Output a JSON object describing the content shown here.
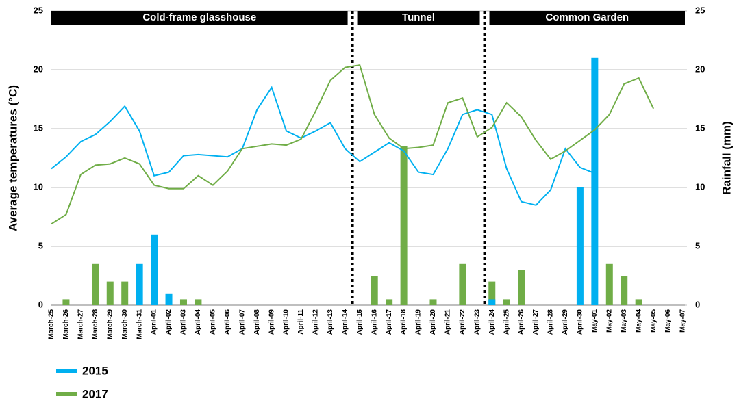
{
  "chart_data": {
    "type": "line-bar",
    "categories": [
      "March-25",
      "March-26",
      "March-27",
      "March-28",
      "March-29",
      "March-30",
      "March-31",
      "April-01",
      "April-02",
      "April-03",
      "April-04",
      "April-05",
      "April-06",
      "April-07",
      "April-08",
      "April-09",
      "April-10",
      "April-11",
      "April-12",
      "April-13",
      "April-14",
      "April-15",
      "April-16",
      "April-17",
      "April-18",
      "April-19",
      "April-20",
      "April-21",
      "April-22",
      "April-23",
      "April-24",
      "April-25",
      "April-26",
      "April-27",
      "April-28",
      "April-29",
      "April-30",
      "May-01",
      "May-02",
      "May-03",
      "May-04",
      "May-05",
      "May-06",
      "May-07"
    ],
    "y_label": "Average temperatures (°C)",
    "y2_label": "Rainfall (mm)",
    "ylim": [
      0,
      25
    ],
    "yticks": [
      0,
      5,
      10,
      15,
      20,
      25
    ],
    "y2lim": [
      0,
      25
    ],
    "y2ticks": [
      0,
      5,
      10,
      15,
      20,
      25
    ],
    "grid": true,
    "sections": [
      {
        "label": "Cold-frame glasshouse",
        "from": "March-25",
        "to": "April-14"
      },
      {
        "label": "Tunnel",
        "from": "April-15",
        "to": "April-23"
      },
      {
        "label": "Common Garden",
        "from": "April-24",
        "to": "May-07"
      }
    ],
    "series": [
      {
        "name": "2015",
        "color": "#00b0f0",
        "values": [
          11.6,
          12.6,
          13.9,
          14.5,
          15.6,
          16.9,
          14.8,
          11.0,
          11.3,
          12.7,
          12.8,
          12.7,
          12.6,
          13.3,
          16.6,
          18.5,
          14.8,
          14.2,
          14.8,
          15.5,
          13.3,
          12.2,
          13.0,
          13.8,
          13.1,
          11.3,
          11.1,
          13.3,
          16.2,
          16.6,
          16.2,
          11.6,
          8.8,
          8.5,
          9.8,
          13.3,
          11.7,
          11.2,
          null,
          null,
          null,
          null,
          null,
          null
        ],
        "rainfall": [
          0,
          0,
          0,
          0,
          0,
          0,
          3.5,
          6,
          1,
          0,
          0,
          0,
          0,
          0,
          0,
          0,
          0,
          0,
          0,
          0,
          0,
          0,
          0,
          0,
          0,
          0,
          0,
          0,
          0,
          0,
          0.5,
          0,
          0,
          0,
          0,
          0,
          10,
          21,
          0,
          0,
          0,
          0,
          0,
          0
        ]
      },
      {
        "name": "2017",
        "color": "#70ad47",
        "values": [
          6.9,
          7.7,
          11.1,
          11.9,
          12.0,
          12.5,
          12.0,
          10.2,
          9.9,
          9.9,
          11.0,
          10.2,
          11.4,
          13.3,
          13.5,
          13.7,
          13.6,
          14.1,
          16.5,
          19.1,
          20.2,
          20.4,
          16.2,
          14.2,
          13.3,
          13.4,
          13.6,
          17.2,
          17.6,
          14.3,
          15.1,
          17.2,
          16.0,
          14.0,
          12.4,
          13.1,
          14.0,
          14.9,
          16.2,
          18.8,
          19.3,
          16.7,
          null,
          null
        ],
        "rainfall": [
          0,
          0.5,
          0,
          3.5,
          2,
          2,
          0,
          0,
          0,
          0.5,
          0.5,
          0,
          0,
          0,
          0,
          0,
          0,
          0,
          0,
          0,
          0,
          0,
          2.5,
          0.5,
          13.5,
          0,
          0.5,
          0,
          3.5,
          0,
          2,
          0.5,
          3,
          0,
          0,
          0,
          0,
          0,
          3.5,
          2.5,
          0.5,
          0,
          0,
          0
        ]
      }
    ]
  }
}
